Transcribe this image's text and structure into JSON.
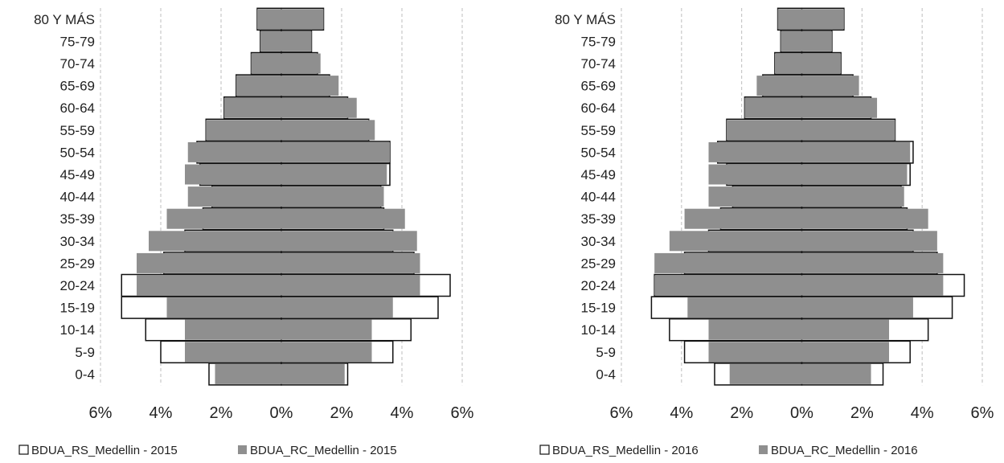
{
  "chart_data": [
    {
      "type": "bar",
      "orientation": "horizontal",
      "layout": "population-pyramid",
      "categories": [
        "0-4",
        "5-9",
        "10-14",
        "15-19",
        "20-24",
        "25-29",
        "30-34",
        "35-39",
        "40-44",
        "45-49",
        "50-54",
        "55-59",
        "60-64",
        "65-69",
        "70-74",
        "75-79",
        "80 Y MÁS"
      ],
      "series": [
        {
          "name": "BDUA_RS_Medellin - 2015",
          "style": "outline",
          "left": [
            2.4,
            4.0,
            4.5,
            5.3,
            5.3,
            3.9,
            3.2,
            2.6,
            2.3,
            2.7,
            2.8,
            2.5,
            1.9,
            1.5,
            1.0,
            0.7,
            0.8
          ],
          "right": [
            2.2,
            3.7,
            4.3,
            5.2,
            5.6,
            4.4,
            3.7,
            3.4,
            3.3,
            3.6,
            3.6,
            2.9,
            2.2,
            1.6,
            1.2,
            1.0,
            1.4
          ]
        },
        {
          "name": "BDUA_RC_Medellin - 2015",
          "style": "filled",
          "left": [
            2.2,
            3.2,
            3.2,
            3.8,
            4.8,
            4.8,
            4.4,
            3.8,
            3.1,
            3.2,
            3.1,
            2.5,
            1.9,
            1.5,
            1.0,
            0.7,
            0.8
          ],
          "right": [
            2.1,
            3.0,
            3.0,
            3.7,
            4.6,
            4.6,
            4.5,
            4.1,
            3.4,
            3.5,
            3.6,
            3.1,
            2.5,
            1.9,
            1.3,
            1.0,
            1.4
          ]
        }
      ],
      "xlim": [
        -6,
        6
      ],
      "xticks": [
        "6%",
        "4%",
        "2%",
        "0%",
        "2%",
        "4%",
        "6%"
      ],
      "grid": "vertical-dashed",
      "legend_position": "bottom"
    },
    {
      "type": "bar",
      "orientation": "horizontal",
      "layout": "population-pyramid",
      "categories": [
        "0-4",
        "5-9",
        "10-14",
        "15-19",
        "20-24",
        "25-29",
        "30-34",
        "35-39",
        "40-44",
        "45-49",
        "50-54",
        "55-59",
        "60-64",
        "65-69",
        "70-74",
        "75-79",
        "80 Y MÁS"
      ],
      "series": [
        {
          "name": "BDUA_RS_Medellin - 2016",
          "style": "outline",
          "left": [
            2.9,
            3.9,
            4.4,
            5.0,
            4.9,
            3.9,
            3.1,
            2.7,
            2.3,
            2.5,
            2.8,
            2.5,
            1.9,
            1.3,
            0.9,
            0.7,
            0.8
          ],
          "right": [
            2.7,
            3.6,
            4.2,
            5.0,
            5.4,
            4.5,
            3.7,
            3.5,
            3.3,
            3.6,
            3.7,
            3.1,
            2.3,
            1.7,
            1.3,
            1.0,
            1.4
          ]
        },
        {
          "name": "BDUA_RC_Medellin - 2016",
          "style": "filled",
          "left": [
            2.4,
            3.1,
            3.1,
            3.8,
            4.9,
            4.9,
            4.4,
            3.9,
            3.1,
            3.1,
            3.1,
            2.5,
            1.9,
            1.5,
            0.9,
            0.7,
            0.8
          ],
          "right": [
            2.3,
            2.9,
            2.9,
            3.7,
            4.7,
            4.7,
            4.5,
            4.2,
            3.4,
            3.5,
            3.6,
            3.1,
            2.5,
            1.9,
            1.3,
            1.0,
            1.4
          ]
        }
      ],
      "xlim": [
        -6,
        6
      ],
      "xticks": [
        "6%",
        "4%",
        "2%",
        "0%",
        "2%",
        "4%",
        "6%"
      ],
      "grid": "vertical-dashed",
      "legend_position": "bottom"
    }
  ],
  "colors": {
    "filled": "#8f8f8f",
    "outline": "#111111",
    "grid": "#bdbdbd",
    "background": "#ffffff"
  }
}
